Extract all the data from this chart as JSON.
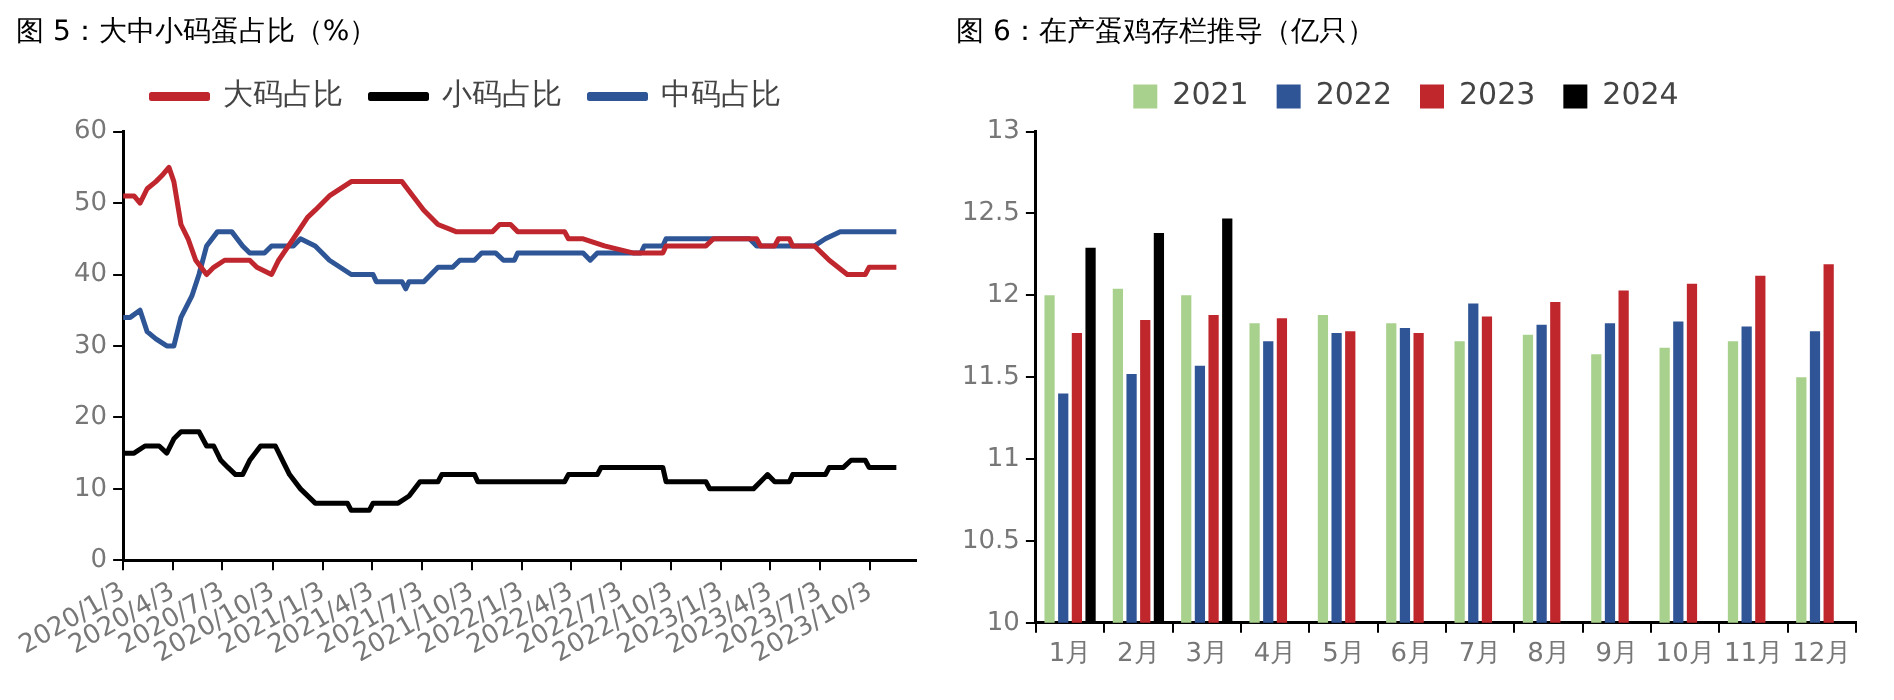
{
  "chart_data": [
    {
      "type": "line",
      "title": "图 5：大中小码蛋占比（%）",
      "xlim": [
        "2020-01-03",
        "2023-12-26"
      ],
      "ylim": [
        0,
        60
      ],
      "yticks": [
        0,
        10,
        20,
        30,
        40,
        50,
        60
      ],
      "xticks": [
        {
          "value": "2020-01-03",
          "label": "2020/1/3"
        },
        {
          "value": "2020-04-03",
          "label": "2020/4/3"
        },
        {
          "value": "2020-07-03",
          "label": "2020/7/3"
        },
        {
          "value": "2020-10-03",
          "label": "2020/10/3"
        },
        {
          "value": "2021-01-03",
          "label": "2021/1/3"
        },
        {
          "value": "2021-04-03",
          "label": "2021/4/3"
        },
        {
          "value": "2021-07-03",
          "label": "2021/7/3"
        },
        {
          "value": "2021-10-03",
          "label": "2021/10/3"
        },
        {
          "value": "2022-01-03",
          "label": "2022/1/3"
        },
        {
          "value": "2022-04-03",
          "label": "2022/4/3"
        },
        {
          "value": "2022-07-03",
          "label": "2022/7/3"
        },
        {
          "value": "2022-10-03",
          "label": "2022/10/3"
        },
        {
          "value": "2023-01-03",
          "label": "2023/1/3"
        },
        {
          "value": "2023-04-03",
          "label": "2023/4/3"
        },
        {
          "value": "2023-07-03",
          "label": "2023/7/3"
        },
        {
          "value": "2023-10-03",
          "label": "2023/10/3"
        }
      ],
      "grid": false,
      "legend": "top",
      "marker": "none",
      "line_style": "solid",
      "series": [
        {
          "name": "大码占比",
          "color": "#c0262d",
          "x": [
            "2020-01-03",
            "2020-01-23",
            "2020-02-03",
            "2020-02-16",
            "2020-03-03",
            "2020-03-16",
            "2020-03-27",
            "2020-04-05",
            "2020-04-18",
            "2020-05-01",
            "2020-05-15",
            "2020-06-04",
            "2020-06-17",
            "2020-07-07",
            "2020-08-22",
            "2020-09-04",
            "2020-10-01",
            "2020-10-14",
            "2020-11-10",
            "2020-12-06",
            "2020-12-20",
            "2021-01-15",
            "2021-02-24",
            "2021-05-28",
            "2021-06-17",
            "2021-07-07",
            "2021-08-02",
            "2021-09-04",
            "2021-11-10",
            "2021-11-23",
            "2021-12-13",
            "2021-12-26",
            "2022-03-22",
            "2022-03-29",
            "2022-04-25",
            "2022-06-03",
            "2022-07-27",
            "2022-09-18",
            "2022-09-24",
            "2022-12-06",
            "2022-12-20",
            "2023-03-09",
            "2023-03-16",
            "2023-04-11",
            "2023-04-18",
            "2023-05-08",
            "2023-05-14",
            "2023-06-23",
            "2023-07-20",
            "2023-08-22",
            "2023-09-24",
            "2023-10-01",
            "2023-11-20"
          ],
          "values": [
            51,
            51,
            50,
            52,
            53,
            54,
            55,
            53,
            47,
            45,
            42,
            40,
            41,
            42,
            42,
            41,
            40,
            42,
            45,
            48,
            49,
            51,
            53,
            53,
            51,
            49,
            47,
            46,
            46,
            47,
            47,
            46,
            46,
            45,
            45,
            44,
            43,
            43,
            44,
            44,
            45,
            45,
            44,
            44,
            45,
            45,
            44,
            44,
            42,
            40,
            40,
            41,
            41
          ]
        },
        {
          "name": "小码占比",
          "color": "#000000",
          "x": [
            "2020-01-03",
            "2020-01-23",
            "2020-02-12",
            "2020-03-09",
            "2020-03-23",
            "2020-04-05",
            "2020-04-18",
            "2020-05-21",
            "2020-06-04",
            "2020-06-17",
            "2020-06-30",
            "2020-07-13",
            "2020-07-27",
            "2020-08-09",
            "2020-08-22",
            "2020-09-11",
            "2020-10-08",
            "2020-10-21",
            "2020-11-03",
            "2020-11-23",
            "2020-12-20",
            "2021-02-17",
            "2021-02-24",
            "2021-03-29",
            "2021-04-05",
            "2021-05-21",
            "2021-06-10",
            "2021-06-30",
            "2021-08-02",
            "2021-08-09",
            "2021-10-08",
            "2021-10-14",
            "2022-03-22",
            "2022-03-29",
            "2022-05-21",
            "2022-05-28",
            "2022-09-18",
            "2022-09-24",
            "2022-12-06",
            "2022-12-13",
            "2023-03-03",
            "2023-03-16",
            "2023-03-29",
            "2023-04-11",
            "2023-05-08",
            "2023-05-14",
            "2023-07-13",
            "2023-07-20",
            "2023-08-15",
            "2023-08-29",
            "2023-09-24",
            "2023-10-01",
            "2023-11-20"
          ],
          "values": [
            15,
            15,
            16,
            16,
            15,
            17,
            18,
            18,
            16,
            16,
            14,
            13,
            12,
            12,
            14,
            16,
            16,
            14,
            12,
            10,
            8,
            8,
            7,
            7,
            8,
            8,
            9,
            11,
            11,
            12,
            12,
            11,
            11,
            12,
            12,
            13,
            13,
            11,
            11,
            10,
            10,
            11,
            12,
            11,
            11,
            12,
            12,
            13,
            13,
            14,
            14,
            13,
            13
          ]
        },
        {
          "name": "中码占比",
          "color": "#2e5596",
          "x": [
            "2020-01-03",
            "2020-01-16",
            "2020-02-03",
            "2020-02-16",
            "2020-03-03",
            "2020-03-23",
            "2020-04-05",
            "2020-04-18",
            "2020-05-08",
            "2020-05-21",
            "2020-06-04",
            "2020-06-24",
            "2020-07-20",
            "2020-08-09",
            "2020-08-22",
            "2020-09-18",
            "2020-10-01",
            "2020-11-10",
            "2020-11-23",
            "2020-12-20",
            "2021-01-15",
            "2021-02-24",
            "2021-04-05",
            "2021-04-11",
            "2021-05-28",
            "2021-06-04",
            "2021-06-10",
            "2021-07-07",
            "2021-08-02",
            "2021-08-29",
            "2021-09-11",
            "2021-10-08",
            "2021-10-21",
            "2021-11-16",
            "2021-11-30",
            "2021-12-20",
            "2021-12-26",
            "2022-04-25",
            "2022-05-08",
            "2022-05-21",
            "2022-08-09",
            "2022-08-15",
            "2022-09-18",
            "2022-09-24",
            "2023-02-24",
            "2023-03-09",
            "2023-06-23",
            "2023-07-13",
            "2023-08-09",
            "2023-11-20"
          ],
          "values": [
            34,
            34,
            35,
            32,
            31,
            30,
            30,
            34,
            37,
            40,
            44,
            46,
            46,
            44,
            43,
            43,
            44,
            44,
            45,
            44,
            42,
            40,
            40,
            39,
            39,
            38,
            39,
            39,
            41,
            41,
            42,
            42,
            43,
            43,
            42,
            42,
            43,
            43,
            42,
            43,
            43,
            44,
            44,
            45,
            45,
            44,
            44,
            45,
            46,
            46
          ]
        }
      ]
    },
    {
      "type": "bar",
      "title": "图 6：在产蛋鸡存栏推导（亿只）",
      "categories": [
        "1月",
        "2月",
        "3月",
        "4月",
        "5月",
        "6月",
        "7月",
        "8月",
        "9月",
        "10月",
        "11月",
        "12月"
      ],
      "ylim": [
        10,
        13
      ],
      "yticks": [
        10,
        10.5,
        11,
        11.5,
        12,
        12.5,
        13
      ],
      "grid": false,
      "legend": "top",
      "series": [
        {
          "name": "2021",
          "color": "#a9d18e",
          "values": [
            12.0,
            12.04,
            12.0,
            11.83,
            11.88,
            11.83,
            11.72,
            11.76,
            11.64,
            11.68,
            11.72,
            11.5
          ]
        },
        {
          "name": "2022",
          "color": "#2f5597",
          "values": [
            11.4,
            11.52,
            11.57,
            11.72,
            11.77,
            11.8,
            11.95,
            11.82,
            11.83,
            11.84,
            11.81,
            11.78
          ]
        },
        {
          "name": "2023",
          "color": "#c0272d",
          "values": [
            11.77,
            11.85,
            11.88,
            11.86,
            11.78,
            11.77,
            11.87,
            11.96,
            12.03,
            12.07,
            12.12,
            12.19
          ]
        },
        {
          "name": "2024",
          "color": "#000000",
          "values": [
            12.29,
            12.38,
            12.47,
            null,
            null,
            null,
            null,
            null,
            null,
            null,
            null,
            null
          ]
        }
      ]
    }
  ]
}
